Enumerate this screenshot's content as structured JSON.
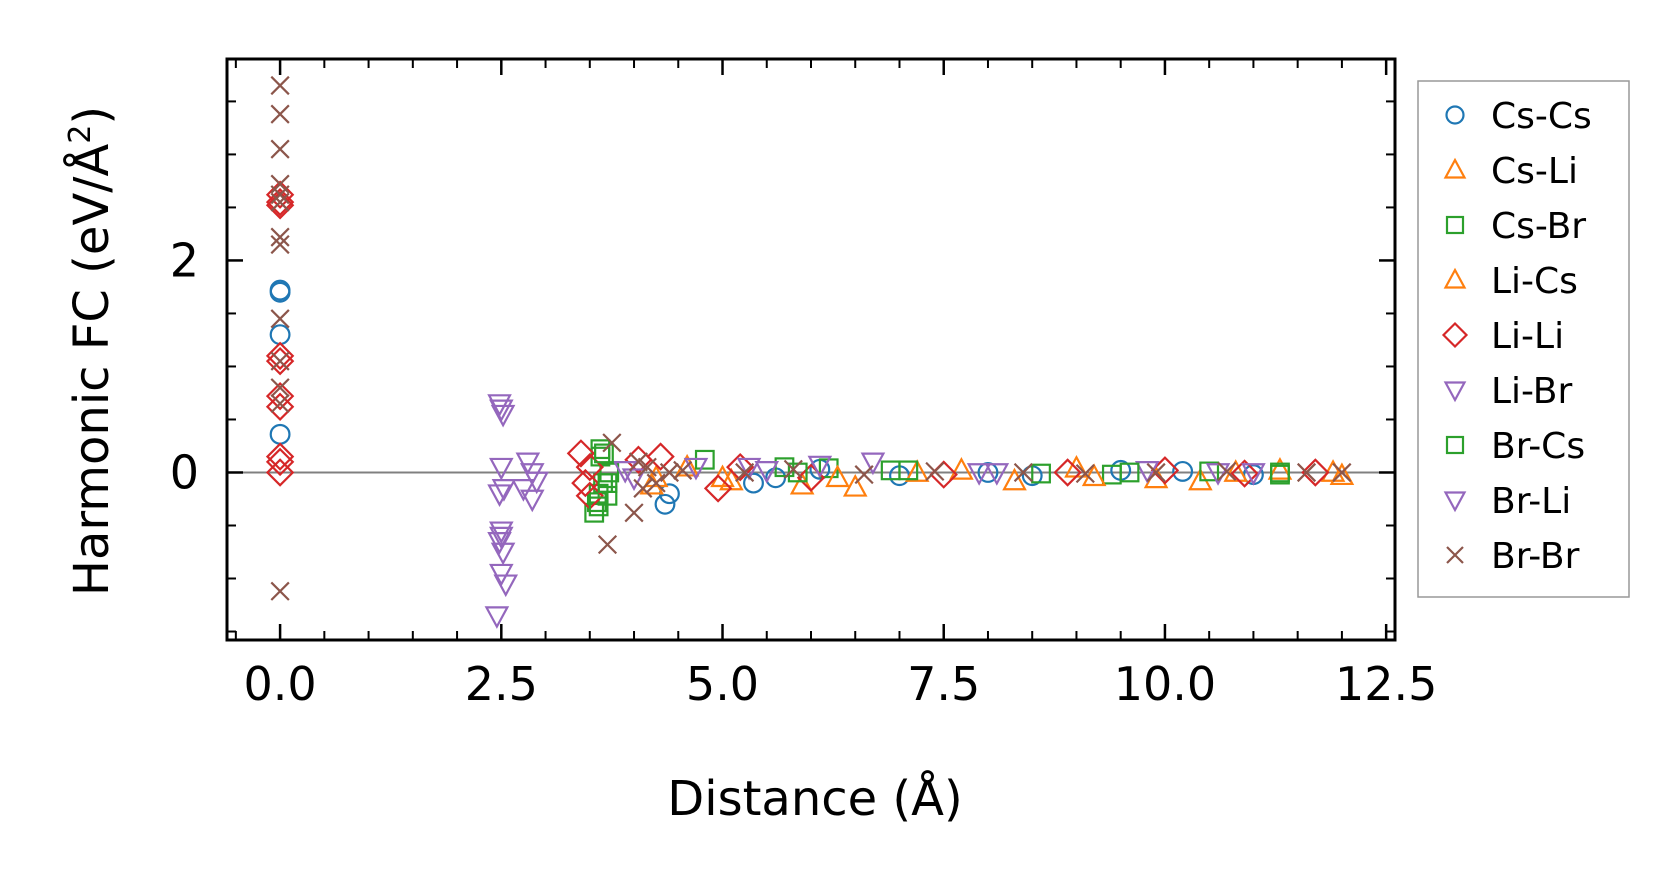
{
  "chart_data": {
    "type": "scatter",
    "title": "",
    "xlabel": "Distance (Å)",
    "ylabel": "Harmonic FC (eV/Å",
    "ylabel_superscript": "2",
    "ylabel_tail": ")",
    "xlim": [
      -0.6,
      12.6
    ],
    "ylim": [
      -1.58,
      3.9
    ],
    "xticks": [
      0.0,
      2.5,
      5.0,
      7.5,
      10.0,
      12.5
    ],
    "xtick_labels": [
      "0.0",
      "2.5",
      "5.0",
      "7.5",
      "10.0",
      "12.5"
    ],
    "yticks": [
      0,
      2
    ],
    "ytick_labels": [
      "0",
      "2"
    ],
    "zero_line": true,
    "legend_position": "right",
    "series": [
      {
        "name": "Cs-Cs",
        "marker": "circle",
        "color": "#1f77b4",
        "points": [
          [
            0,
            1.72
          ],
          [
            0,
            1.7
          ],
          [
            0,
            1.3
          ],
          [
            0,
            0.36
          ],
          [
            4.35,
            -0.3
          ],
          [
            4.4,
            -0.2
          ],
          [
            5.35,
            -0.1
          ],
          [
            5.6,
            -0.05
          ],
          [
            6.1,
            0.03
          ],
          [
            7.0,
            -0.03
          ],
          [
            8.0,
            0.0
          ],
          [
            8.5,
            -0.03
          ],
          [
            9.5,
            0.02
          ],
          [
            10.2,
            0.01
          ],
          [
            11.0,
            -0.02
          ]
        ]
      },
      {
        "name": "Cs-Li",
        "marker": "triangle-up",
        "color": "#ff7f0e",
        "points": [
          [
            4.2,
            -0.12
          ],
          [
            4.6,
            0.05
          ],
          [
            5.0,
            -0.05
          ],
          [
            5.9,
            -0.12
          ],
          [
            6.5,
            -0.14
          ],
          [
            7.2,
            0.0
          ],
          [
            8.3,
            -0.08
          ],
          [
            9.0,
            0.04
          ],
          [
            9.9,
            -0.06
          ],
          [
            10.4,
            -0.08
          ],
          [
            11.3,
            0.02
          ],
          [
            12.0,
            -0.03
          ]
        ]
      },
      {
        "name": "Cs-Br",
        "marker": "square",
        "color": "#2ca02c",
        "points": [
          [
            3.55,
            -0.38
          ],
          [
            3.58,
            -0.28
          ],
          [
            3.6,
            -0.2
          ],
          [
            3.62,
            0.15
          ],
          [
            3.65,
            -0.1
          ],
          [
            3.62,
            0.22
          ],
          [
            3.7,
            -0.22
          ],
          [
            3.72,
            0.0
          ],
          [
            4.8,
            0.12
          ],
          [
            5.7,
            0.05
          ],
          [
            6.2,
            0.04
          ],
          [
            7.1,
            0.02
          ],
          [
            8.6,
            -0.01
          ],
          [
            9.4,
            -0.02
          ],
          [
            10.5,
            0.01
          ],
          [
            11.3,
            -0.02
          ]
        ]
      },
      {
        "name": "Li-Cs",
        "marker": "triangle-up",
        "color": "#ff7f0e",
        "points": [
          [
            4.25,
            -0.05
          ],
          [
            5.1,
            -0.08
          ],
          [
            6.3,
            -0.05
          ],
          [
            7.7,
            0.02
          ],
          [
            9.2,
            -0.04
          ],
          [
            10.8,
            0.0
          ],
          [
            11.9,
            0.0
          ]
        ]
      },
      {
        "name": "Li-Li",
        "marker": "diamond",
        "color": "#d62728",
        "points": [
          [
            0,
            2.62
          ],
          [
            0,
            2.55
          ],
          [
            0,
            2.52
          ],
          [
            0,
            1.1
          ],
          [
            0,
            1.05
          ],
          [
            0,
            0.72
          ],
          [
            0,
            0.62
          ],
          [
            0,
            0.15
          ],
          [
            0,
            0.1
          ],
          [
            0,
            0.0
          ],
          [
            3.4,
            0.18
          ],
          [
            3.45,
            -0.1
          ],
          [
            3.5,
            0.05
          ],
          [
            3.5,
            -0.22
          ],
          [
            4.05,
            0.12
          ],
          [
            4.3,
            0.15
          ],
          [
            4.95,
            -0.15
          ],
          [
            5.2,
            0.05
          ],
          [
            6.0,
            -0.05
          ],
          [
            7.5,
            -0.02
          ],
          [
            8.9,
            0.0
          ],
          [
            10.0,
            0.02
          ],
          [
            10.9,
            -0.01
          ],
          [
            11.7,
            0.0
          ]
        ]
      },
      {
        "name": "Li-Br",
        "marker": "triangle-down",
        "color": "#9467bd",
        "points": [
          [
            2.48,
            0.65
          ],
          [
            2.52,
            0.55
          ],
          [
            2.5,
            0.05
          ],
          [
            2.48,
            -0.2
          ],
          [
            2.53,
            -0.15
          ],
          [
            2.5,
            -0.55
          ],
          [
            2.48,
            -0.65
          ],
          [
            2.52,
            -0.75
          ],
          [
            2.5,
            -0.95
          ],
          [
            2.55,
            -1.05
          ],
          [
            2.45,
            -1.35
          ],
          [
            2.8,
            0.1
          ],
          [
            2.85,
            0.0
          ],
          [
            2.75,
            -0.15
          ],
          [
            2.9,
            -0.08
          ],
          [
            3.9,
            0.02
          ],
          [
            4.7,
            0.05
          ],
          [
            5.5,
            0.02
          ],
          [
            6.7,
            0.1
          ],
          [
            8.1,
            0.0
          ],
          [
            9.8,
            0.02
          ],
          [
            11.0,
            0.0
          ]
        ]
      },
      {
        "name": "Br-Cs",
        "marker": "square",
        "color": "#2ca02c",
        "points": [
          [
            3.6,
            -0.32
          ],
          [
            3.66,
            0.18
          ],
          [
            3.7,
            -0.1
          ],
          [
            5.85,
            0.0
          ],
          [
            6.9,
            0.02
          ],
          [
            9.6,
            0.0
          ],
          [
            11.3,
            0.0
          ]
        ]
      },
      {
        "name": "Br-Li",
        "marker": "triangle-down",
        "color": "#9467bd",
        "points": [
          [
            2.5,
            0.6
          ],
          [
            2.5,
            -0.6
          ],
          [
            2.85,
            -0.25
          ],
          [
            4.0,
            -0.05
          ],
          [
            5.3,
            0.05
          ],
          [
            6.1,
            0.07
          ],
          [
            7.9,
            0.0
          ],
          [
            10.6,
            0.0
          ]
        ]
      },
      {
        "name": "Br-Br",
        "marker": "x",
        "color": "#8c564b",
        "points": [
          [
            0,
            3.65
          ],
          [
            0,
            3.38
          ],
          [
            0,
            3.05
          ],
          [
            0,
            2.72
          ],
          [
            0,
            2.62
          ],
          [
            0,
            2.55
          ],
          [
            0,
            2.22
          ],
          [
            0,
            2.15
          ],
          [
            0,
            1.45
          ],
          [
            0,
            1.05
          ],
          [
            0,
            0.8
          ],
          [
            0,
            0.65
          ],
          [
            0,
            -1.12
          ],
          [
            3.75,
            0.28
          ],
          [
            3.7,
            -0.68
          ],
          [
            4.0,
            -0.38
          ],
          [
            4.05,
            0.1
          ],
          [
            4.1,
            -0.15
          ],
          [
            4.15,
            0.05
          ],
          [
            4.25,
            -0.1
          ],
          [
            4.4,
            0.0
          ],
          [
            4.55,
            0.02
          ],
          [
            5.25,
            0.0
          ],
          [
            5.8,
            0.03
          ],
          [
            6.6,
            -0.02
          ],
          [
            7.4,
            0.01
          ],
          [
            8.4,
            0.0
          ],
          [
            9.1,
            -0.01
          ],
          [
            9.9,
            0.0
          ],
          [
            10.7,
            0.01
          ],
          [
            11.6,
            0.0
          ],
          [
            12.0,
            0.0
          ]
        ]
      }
    ]
  }
}
